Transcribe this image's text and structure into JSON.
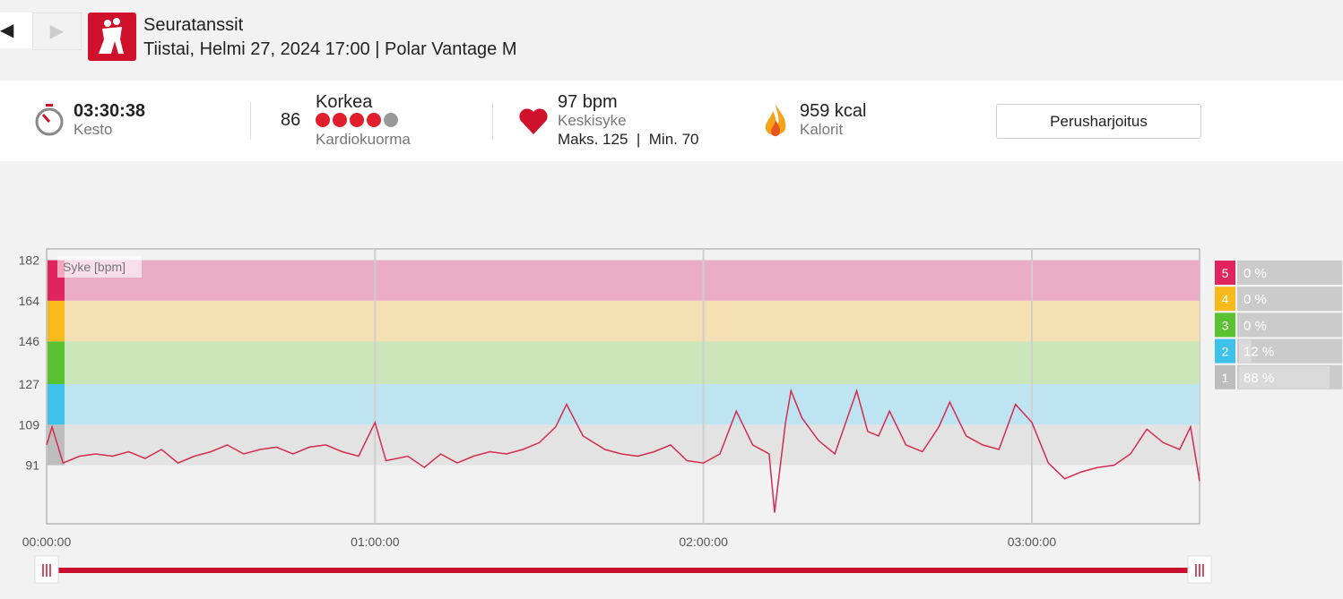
{
  "header": {
    "title": "Seuratanssit",
    "subtitle": "Tiistai, Helmi 27, 2024 17:00 | Polar Vantage M"
  },
  "stats": {
    "duration": {
      "value": "03:30:38",
      "label": "Kesto"
    },
    "cardio_load": {
      "value": 86,
      "level": "Korkea",
      "label": "Kardiokuorma",
      "dots": 4,
      "dots_max": 5
    },
    "heart_rate": {
      "value": "97 bpm",
      "label": "Keskisyke",
      "max": "Maks. 125",
      "separator": "|",
      "min": "Min. 70"
    },
    "calories": {
      "value": "959 kcal",
      "label": "Kalorit"
    },
    "button": "Perusharjoitus"
  },
  "chart_data": {
    "type": "line",
    "y_label": "Syke [bpm]",
    "x": [
      0,
      60,
      180,
      360,
      540,
      720,
      900,
      1080,
      1260,
      1440,
      1620,
      1800,
      1980,
      2160,
      2340,
      2520,
      2700,
      2880,
      3060,
      3240,
      3420,
      3600,
      3720,
      3960,
      4140,
      4320,
      4500,
      4680,
      4860,
      5040,
      5220,
      5400,
      5580,
      5700,
      5880,
      6120,
      6300,
      6480,
      6660,
      6840,
      7020,
      7200,
      7380,
      7560,
      7740,
      7920,
      7980,
      8100,
      8160,
      8280,
      8460,
      8640,
      8760,
      8880,
      9000,
      9120,
      9240,
      9420,
      9600,
      9780,
      9900,
      10080,
      10260,
      10440,
      10620,
      10800,
      10980,
      11160,
      11340,
      11520,
      11700,
      11880,
      12060,
      12240,
      12420,
      12540,
      12638
    ],
    "series": [
      {
        "color": "#d42c4e",
        "values": [
          100,
          108,
          92,
          95,
          96,
          95,
          97,
          94,
          98,
          92,
          95,
          97,
          100,
          96,
          98,
          99,
          96,
          99,
          100,
          97,
          95,
          110,
          93,
          95,
          90,
          96,
          92,
          95,
          97,
          96,
          98,
          101,
          108,
          118,
          104,
          98,
          96,
          95,
          97,
          100,
          93,
          92,
          96,
          115,
          100,
          96,
          70,
          110,
          124,
          112,
          102,
          96,
          110,
          124,
          106,
          104,
          115,
          100,
          97,
          108,
          119,
          104,
          100,
          98,
          118,
          110,
          92,
          85,
          88,
          90,
          91,
          96,
          107,
          101,
          98,
          108,
          84
        ]
      }
    ],
    "xlim": [
      0,
      12638
    ],
    "xticks": [
      {
        "value": 0,
        "label": "00:00:00"
      },
      {
        "value": 3600,
        "label": "01:00:00"
      },
      {
        "value": 7200,
        "label": "02:00:00"
      },
      {
        "value": 10800,
        "label": "03:00:00"
      }
    ],
    "ylim": [
      65,
      187
    ],
    "yticks": [
      91,
      109,
      127,
      146,
      164,
      182
    ],
    "grid": true,
    "zones": {
      "names": [
        "1",
        "2",
        "3",
        "4",
        "5"
      ],
      "colors": [
        "#bdbdbd",
        "#3ec2ec",
        "#5ac130",
        "#f7b91b",
        "#e0245e"
      ],
      "band_colors": [
        "#e3e3e3",
        "#bee3f1",
        "#cbe6b8",
        "#f5e0b4",
        "#ebadc5"
      ],
      "values": [
        88,
        12,
        0,
        0,
        0
      ],
      "value_labels": [
        "88 %",
        "12 %",
        "0 %",
        "0 %",
        "0 %"
      ]
    }
  }
}
